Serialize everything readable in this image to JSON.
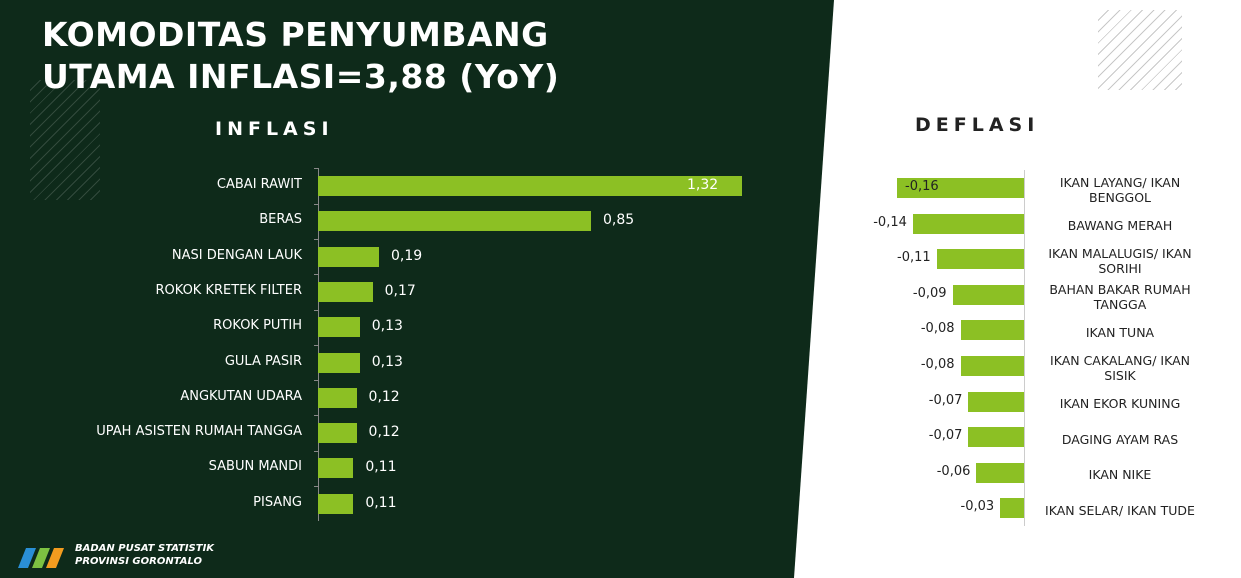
{
  "header": {
    "title_lines": [
      "KOMODITAS PENYUMBANG",
      "UTAMA INFLASI=3,88 (YoY)"
    ]
  },
  "footer": {
    "lines": [
      "BADAN PUSAT STATISTIK",
      "PROVINSI GORONTALO"
    ]
  },
  "chart_data": [
    {
      "type": "hbar",
      "title": "INFLASI",
      "color": "#8cc024",
      "categories": [
        "CABAI RAWIT",
        "BERAS",
        "NASI DENGAN LAUK",
        "ROKOK KRETEK FILTER",
        "ROKOK PUTIH",
        "GULA PASIR",
        "ANGKUTAN UDARA",
        "UPAH ASISTEN RUMAH TANGGA",
        "SABUN MANDI",
        "PISANG"
      ],
      "values": [
        1.32,
        0.85,
        0.19,
        0.17,
        0.13,
        0.13,
        0.12,
        0.12,
        0.11,
        0.11
      ],
      "value_labels": [
        "1,32",
        "0,85",
        "0,19",
        "0,17",
        "0,13",
        "0,13",
        "0,12",
        "0,12",
        "0,11",
        "0,11"
      ]
    },
    {
      "type": "hbar",
      "title": "DEFLASI",
      "color": "#8cc024",
      "categories": [
        "IKAN LAYANG/ IKAN BENGGOL",
        "BAWANG MERAH",
        "IKAN MALALUGIS/ IKAN SORIHI",
        "BAHAN BAKAR RUMAH TANGGA",
        "IKAN TUNA",
        "IKAN CAKALANG/ IKAN SISIK",
        "IKAN EKOR KUNING",
        "DAGING AYAM RAS",
        "IKAN NIKE",
        "IKAN SELAR/ IKAN TUDE"
      ],
      "values": [
        -0.16,
        -0.14,
        -0.11,
        -0.09,
        -0.08,
        -0.08,
        -0.07,
        -0.07,
        -0.06,
        -0.03
      ],
      "value_labels": [
        "-0,16",
        "-0,14",
        "-0,11",
        "-0,09",
        "-0,08",
        "-0,08",
        "-0,07",
        "-0,07",
        "-0,06",
        "-0,03"
      ]
    }
  ]
}
